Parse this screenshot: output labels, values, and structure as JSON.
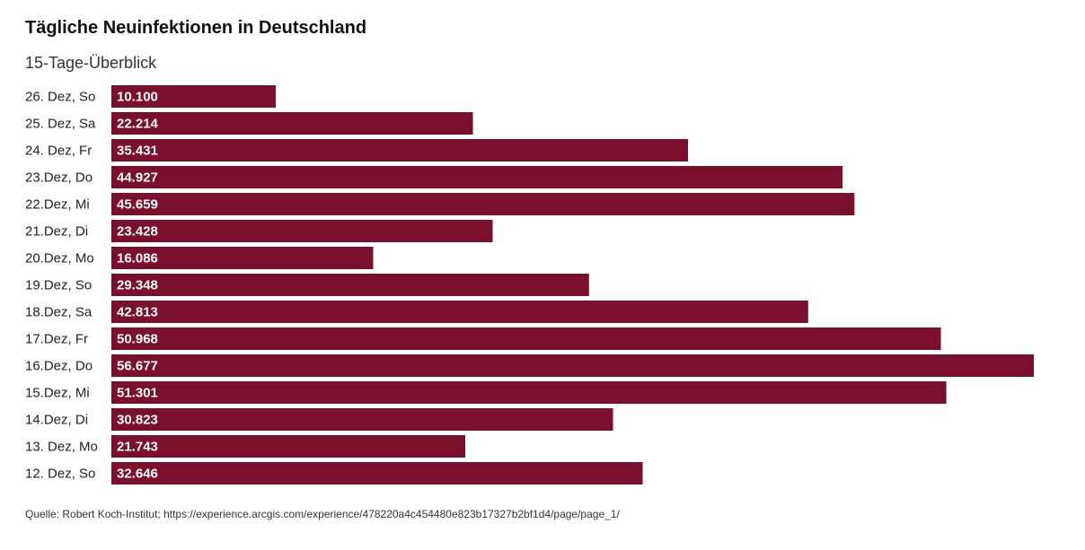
{
  "chart_data": {
    "type": "bar",
    "orientation": "horizontal",
    "title": "Tägliche Neuinfektionen in Deutschland",
    "subtitle": "15-Tage-Überblick",
    "categories": [
      "26. Dez, So",
      "25. Dez, Sa",
      "24. Dez, Fr",
      "23.Dez, Do",
      "22.Dez, Mi",
      "21.Dez, Di",
      "20.Dez, Mo",
      "19.Dez, So",
      "18.Dez, Sa",
      "17.Dez, Fr",
      "16.Dez, Do",
      "15.Dez, Mi",
      "14.Dez, Di",
      "13. Dez, Mo",
      "12. Dez, So"
    ],
    "values": [
      10100,
      22214,
      35431,
      44927,
      45659,
      23428,
      16086,
      29348,
      42813,
      50968,
      56677,
      51301,
      30823,
      21743,
      32646
    ],
    "value_labels": [
      "10.100",
      "22.214",
      "35.431",
      "44.927",
      "45.659",
      "23.428",
      "16.086",
      "29.348",
      "42.813",
      "50.968",
      "56.677",
      "51.301",
      "30.823",
      "21.743",
      "32.646"
    ],
    "xlim": [
      0,
      56677
    ],
    "grid": false,
    "bar_color": "#7a0f2e",
    "source": "Quelle: Robert Koch-Institut; https://experience.arcgis.com/experience/478220a4c454480e823b17327b2bf1d4/page/page_1/"
  }
}
